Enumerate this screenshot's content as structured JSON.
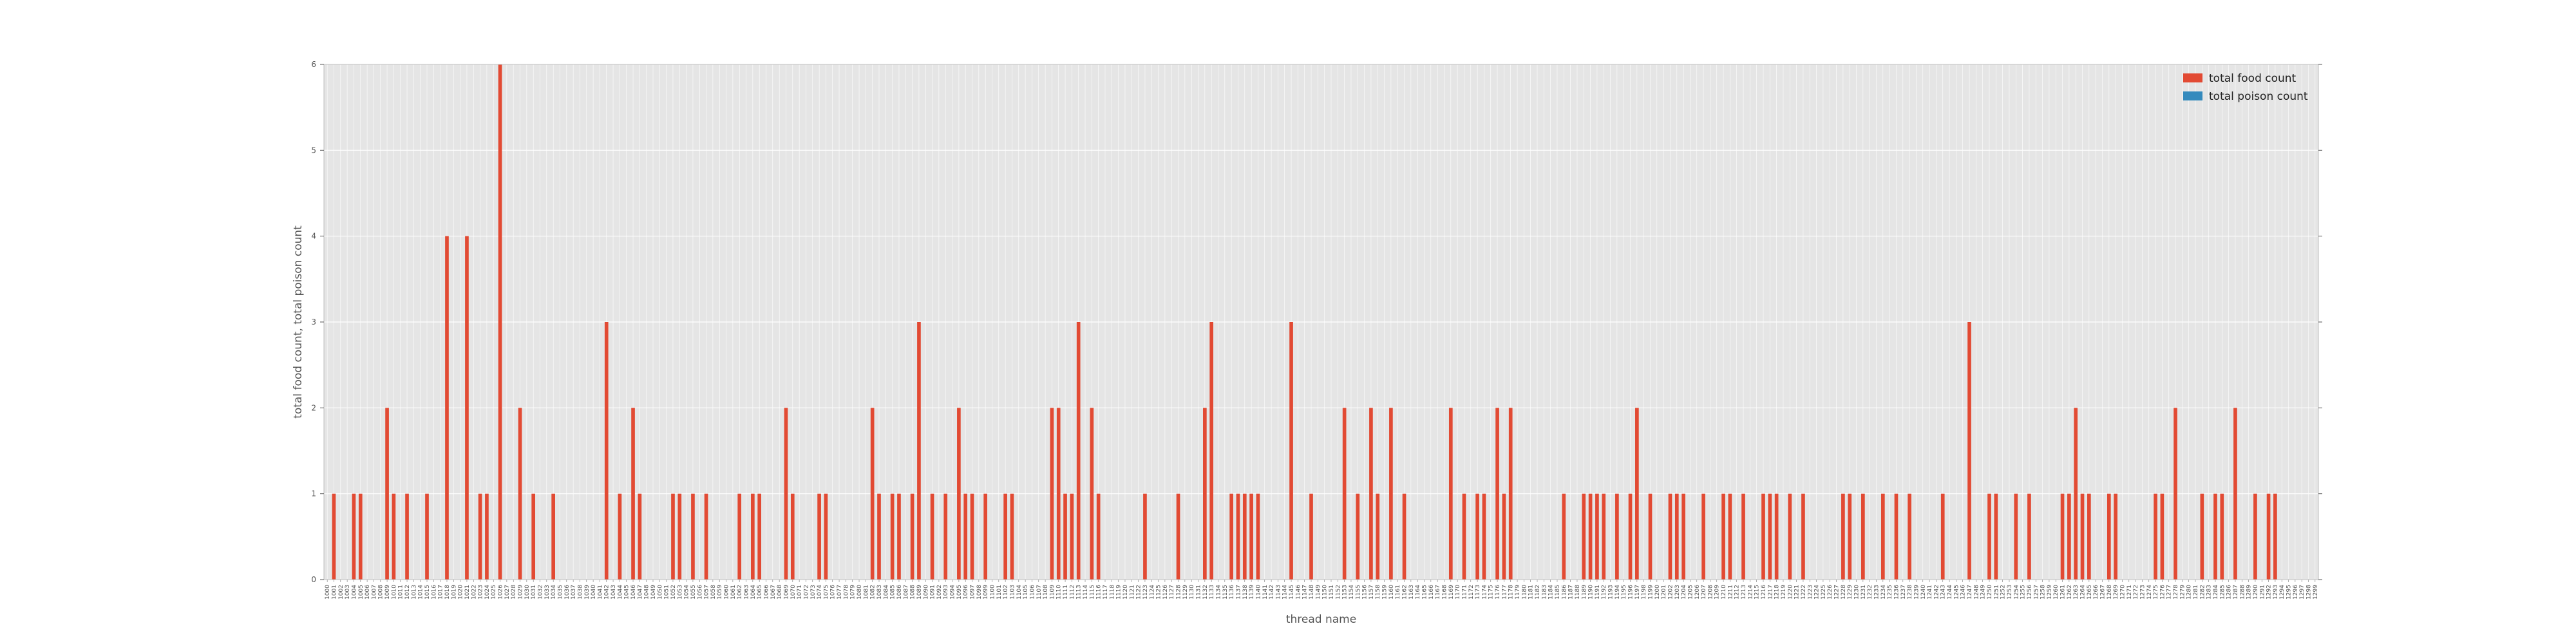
{
  "chart_data": {
    "type": "bar",
    "xlabel": "thread name",
    "ylabel": "total food count, total poison count",
    "ylim": [
      0,
      6
    ],
    "yticks": [
      0,
      1,
      2,
      3,
      4,
      5,
      6
    ],
    "grid": true,
    "legend": "top-right",
    "background_color": "#e5e5e5",
    "grid_color": "#ffffff",
    "colors": {
      "total food count": "#e24a33",
      "total poison count": "#348abd"
    },
    "category_count": 300,
    "category_label_start": 1000,
    "series": [
      {
        "name": "total food count",
        "points": [
          [
            1,
            1
          ],
          [
            4,
            1
          ],
          [
            5,
            1
          ],
          [
            9,
            2
          ],
          [
            10,
            1
          ],
          [
            12,
            1
          ],
          [
            15,
            1
          ],
          [
            18,
            4
          ],
          [
            21,
            4
          ],
          [
            23,
            1
          ],
          [
            24,
            1
          ],
          [
            26,
            6
          ],
          [
            29,
            2
          ],
          [
            31,
            1
          ],
          [
            34,
            1
          ],
          [
            42,
            3
          ],
          [
            44,
            1
          ],
          [
            46,
            2
          ],
          [
            47,
            1
          ],
          [
            52,
            1
          ],
          [
            53,
            1
          ],
          [
            55,
            1
          ],
          [
            57,
            1
          ],
          [
            62,
            1
          ],
          [
            64,
            1
          ],
          [
            65,
            1
          ],
          [
            69,
            2
          ],
          [
            70,
            1
          ],
          [
            74,
            1
          ],
          [
            75,
            1
          ],
          [
            82,
            2
          ],
          [
            83,
            1
          ],
          [
            85,
            1
          ],
          [
            86,
            1
          ],
          [
            88,
            1
          ],
          [
            89,
            3
          ],
          [
            91,
            1
          ],
          [
            93,
            1
          ],
          [
            95,
            2
          ],
          [
            96,
            1
          ],
          [
            97,
            1
          ],
          [
            99,
            1
          ],
          [
            102,
            1
          ],
          [
            103,
            1
          ],
          [
            109,
            2
          ],
          [
            110,
            2
          ],
          [
            111,
            1
          ],
          [
            112,
            1
          ],
          [
            113,
            3
          ],
          [
            115,
            2
          ],
          [
            116,
            1
          ],
          [
            123,
            1
          ],
          [
            128,
            1
          ],
          [
            132,
            2
          ],
          [
            133,
            3
          ],
          [
            136,
            1
          ],
          [
            137,
            1
          ],
          [
            138,
            1
          ],
          [
            139,
            1
          ],
          [
            140,
            1
          ],
          [
            145,
            3
          ],
          [
            148,
            1
          ],
          [
            153,
            2
          ],
          [
            155,
            1
          ],
          [
            157,
            2
          ],
          [
            158,
            1
          ],
          [
            160,
            2
          ],
          [
            162,
            1
          ],
          [
            169,
            2
          ],
          [
            171,
            1
          ],
          [
            173,
            1
          ],
          [
            174,
            1
          ],
          [
            176,
            2
          ],
          [
            177,
            1
          ],
          [
            178,
            2
          ],
          [
            186,
            1
          ],
          [
            189,
            1
          ],
          [
            190,
            1
          ],
          [
            191,
            1
          ],
          [
            192,
            1
          ],
          [
            194,
            1
          ],
          [
            196,
            1
          ],
          [
            197,
            2
          ],
          [
            199,
            1
          ],
          [
            202,
            1
          ],
          [
            203,
            1
          ],
          [
            204,
            1
          ],
          [
            207,
            1
          ],
          [
            210,
            1
          ],
          [
            211,
            1
          ],
          [
            213,
            1
          ],
          [
            216,
            1
          ],
          [
            217,
            1
          ],
          [
            218,
            1
          ],
          [
            220,
            1
          ],
          [
            222,
            1
          ],
          [
            228,
            1
          ],
          [
            229,
            1
          ],
          [
            231,
            1
          ],
          [
            234,
            1
          ],
          [
            236,
            1
          ],
          [
            238,
            1
          ],
          [
            243,
            1
          ],
          [
            247,
            3
          ],
          [
            250,
            1
          ],
          [
            251,
            1
          ],
          [
            254,
            1
          ],
          [
            256,
            1
          ],
          [
            261,
            1
          ],
          [
            262,
            1
          ],
          [
            263,
            2
          ],
          [
            264,
            1
          ],
          [
            265,
            1
          ],
          [
            268,
            1
          ],
          [
            269,
            1
          ],
          [
            275,
            1
          ],
          [
            276,
            1
          ],
          [
            278,
            2
          ],
          [
            282,
            1
          ],
          [
            284,
            1
          ],
          [
            285,
            1
          ],
          [
            287,
            2
          ],
          [
            290,
            1
          ],
          [
            292,
            1
          ],
          [
            293,
            1
          ]
        ]
      },
      {
        "name": "total poison count",
        "points": []
      }
    ]
  }
}
